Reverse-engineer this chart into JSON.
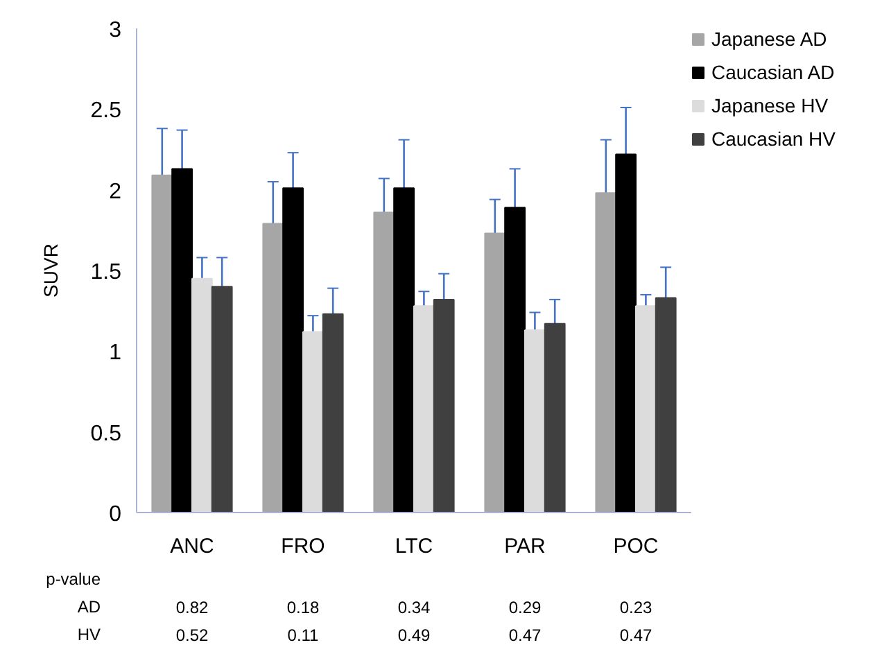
{
  "chart_data": {
    "type": "bar",
    "ylabel": "SUVR",
    "categories": [
      "ANC",
      "FRO",
      "LTC",
      "PAR",
      "POC"
    ],
    "series": [
      {
        "name": "Japanese AD",
        "color": "#a6a6a6",
        "values": [
          2.09,
          1.79,
          1.86,
          1.73,
          1.98
        ],
        "errors": [
          0.29,
          0.26,
          0.21,
          0.21,
          0.33
        ]
      },
      {
        "name": "Caucasian AD",
        "color": "#000000",
        "values": [
          2.13,
          2.01,
          2.01,
          1.89,
          2.22
        ],
        "errors": [
          0.24,
          0.22,
          0.3,
          0.24,
          0.29
        ]
      },
      {
        "name": "Japanese HV",
        "color": "#dcdcdc",
        "values": [
          1.45,
          1.12,
          1.28,
          1.13,
          1.28
        ],
        "errors": [
          0.13,
          0.1,
          0.09,
          0.11,
          0.07
        ]
      },
      {
        "name": "Caucasian HV",
        "color": "#404040",
        "values": [
          1.4,
          1.23,
          1.32,
          1.17,
          1.33
        ],
        "errors": [
          0.18,
          0.16,
          0.16,
          0.15,
          0.19
        ]
      }
    ],
    "ylim": [
      0,
      3
    ],
    "yticks": [
      0,
      0.5,
      1,
      1.5,
      2,
      2.5,
      3
    ],
    "grid": false,
    "legend": "right",
    "annotations": [
      "p-value",
      "AD",
      "0.82",
      "0.18",
      "0.34",
      "0.29",
      "0.23",
      "HV",
      "0.52",
      "0.11",
      "0.49",
      "0.47",
      "0.47"
    ]
  }
}
